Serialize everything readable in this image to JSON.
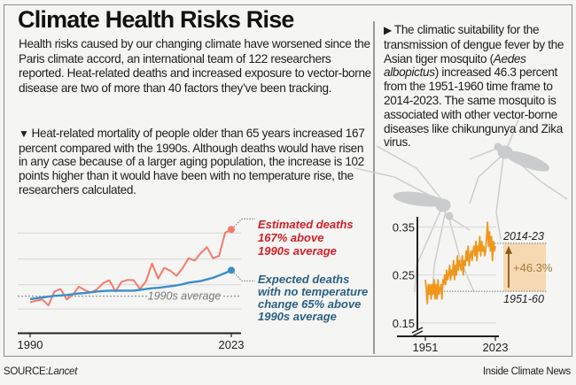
{
  "header": {
    "title": "Climate Health Risks Rise",
    "intro": "Health risks caused by our changing climate have worsened since the Paris climate accord, an international team of 122 researchers reported. Heat-related deaths and increased exposure to vector-borne disease are two of more than 40 factors they’ve been tracking."
  },
  "left_panel": {
    "bullet_icon": "triangle-down-icon",
    "bullet_glyph": "▼",
    "text": "Heat-related mortality of people older than 65 years increased 167 percent compared with the 1990s. Although deaths would have risen in any case because of a larger aging population, the increase is 102 points higher than it would have been with no temperature rise, the researchers calculated."
  },
  "right_panel": {
    "bullet_icon": "triangle-right-icon",
    "bullet_glyph": "▶",
    "text_before_italic": "The climatic suitability for the transmission of dengue fever by the Asian tiger mosquito (",
    "italic": "Aedes albopictus",
    "text_after_italic": ") increased 46.3 percent from the 1951-1960 time frame to 2014-2023. The same mosquito is associated with other vector-borne diseases like chikungunya and Zika virus.",
    "illustration": "mosquito-silhouettes"
  },
  "footer": {
    "source_label": "SOURCE:",
    "source_value": "Lancet",
    "credit": "Inside Climate News"
  },
  "colors": {
    "estimated": "#f47a6b",
    "estimated_text": "#d31f26",
    "expected": "#3a8fc7",
    "expected_text": "#2b5f82",
    "suitability": "#f0961a",
    "increase_box": "#f6d9b2",
    "increase_arrow": "#8a5a1a",
    "increase_text": "#a67c3a",
    "gridline": "#dcdcdc"
  },
  "chart_data": [
    {
      "type": "line",
      "title": "Heat-related mortality, people older than 65 (percent change vs 1990s average)",
      "xlabel": "",
      "ylabel": "",
      "x_ticks": [
        "1990",
        "2023"
      ],
      "x": [
        1990,
        1991,
        1992,
        1993,
        1994,
        1995,
        1996,
        1997,
        1998,
        1999,
        2000,
        2001,
        2002,
        2003,
        2004,
        2005,
        2006,
        2007,
        2008,
        2009,
        2010,
        2011,
        2012,
        2013,
        2014,
        2015,
        2016,
        2017,
        2018,
        2019,
        2020,
        2021,
        2022,
        2023
      ],
      "xlim": [
        1990,
        2023
      ],
      "ylim": [
        -50,
        185
      ],
      "grid": true,
      "gridlines": [
        -32,
        29,
        93,
        158
      ],
      "reference_line": {
        "value": 0,
        "label": "1990s average"
      },
      "series": [
        {
          "name": "Estimated deaths",
          "annotation": [
            "Estimated deaths",
            "167% above",
            "1990s average"
          ],
          "values": [
            -15,
            -11,
            -8,
            -23,
            12,
            18,
            -8,
            4,
            24,
            15,
            9,
            18,
            33,
            40,
            12,
            36,
            41,
            40,
            18,
            37,
            82,
            44,
            71,
            64,
            51,
            70,
            95,
            89,
            108,
            123,
            95,
            101,
            159,
            167
          ]
        },
        {
          "name": "Expected deaths with no temperature change",
          "annotation": [
            "Expected deaths",
            "with no temperature",
            "change 65% above",
            "1990s average"
          ],
          "values": [
            -7,
            -5,
            -3,
            -1,
            1,
            2,
            3,
            5,
            7,
            8,
            10,
            12,
            13,
            14,
            14,
            14,
            14,
            14,
            16,
            18,
            20,
            21,
            23,
            25,
            27,
            30,
            34,
            36,
            38,
            42,
            46,
            52,
            58,
            65
          ]
        }
      ]
    },
    {
      "type": "line",
      "title": "Climatic suitability for dengue transmission by Aedes albopictus",
      "xlabel": "",
      "ylabel": "",
      "x_ticks": [
        "1951",
        "2023"
      ],
      "y_ticks": [
        "0.15",
        "0.25",
        "0.35"
      ],
      "y_tick_values": [
        0.15,
        0.25,
        0.35
      ],
      "xlim": [
        1951,
        2023
      ],
      "ylim": [
        0.13,
        0.37
      ],
      "axis_break": true,
      "grid": true,
      "x_start": 1951,
      "series": [
        {
          "name": "Suitability",
          "values": [
            0.24,
            0.22,
            0.19,
            0.23,
            0.21,
            0.23,
            0.2,
            0.23,
            0.21,
            0.24,
            0.2,
            0.23,
            0.2,
            0.24,
            0.21,
            0.22,
            0.23,
            0.2,
            0.24,
            0.23,
            0.25,
            0.23,
            0.26,
            0.24,
            0.25,
            0.27,
            0.24,
            0.26,
            0.25,
            0.28,
            0.24,
            0.27,
            0.25,
            0.29,
            0.26,
            0.28,
            0.27,
            0.26,
            0.29,
            0.25,
            0.28,
            0.27,
            0.3,
            0.28,
            0.31,
            0.27,
            0.29,
            0.3,
            0.28,
            0.3,
            0.31,
            0.29,
            0.32,
            0.28,
            0.31,
            0.3,
            0.33,
            0.29,
            0.32,
            0.3,
            0.31,
            0.29,
            0.3,
            0.33,
            0.36,
            0.31,
            0.34,
            0.3,
            0.33,
            0.28,
            0.32,
            0.3,
            0.31
          ]
        }
      ],
      "comparison": {
        "baseline_label": "1951-60",
        "baseline_value": 0.216,
        "recent_label": "2014-23",
        "recent_value": 0.316,
        "change_label": "+46.3%"
      }
    }
  ]
}
